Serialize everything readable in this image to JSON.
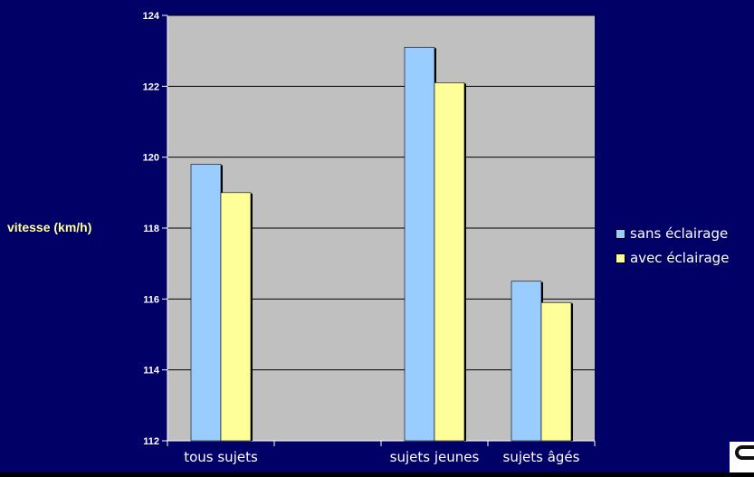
{
  "chart_data": {
    "type": "bar",
    "categories": [
      "tous sujets",
      "",
      "sujets jeunes",
      "sujets âgés"
    ],
    "series": [
      {
        "name": "sans éclairage",
        "values": [
          119.8,
          null,
          123.1,
          116.5
        ]
      },
      {
        "name": "avec éclairage",
        "values": [
          119.0,
          null,
          122.1,
          115.9
        ]
      }
    ],
    "ylabel": "vitesse (km/h)",
    "xlabel": "",
    "ylim": [
      112,
      124
    ],
    "yticks": [
      "112",
      "114",
      "116",
      "118",
      "120",
      "122",
      "124"
    ],
    "grid": true,
    "legend": "right"
  },
  "colors": {
    "background": "#000066",
    "plot_area": "#C0C0C0",
    "series_1": "#99CCFF",
    "series_2": "#FFFF99",
    "ylabel_text": "#FFFF99",
    "tick_text": "#FFFFFF"
  },
  "legend": {
    "items": [
      {
        "label": "sans éclairage"
      },
      {
        "label": "avec éclairage"
      }
    ]
  },
  "logo": {
    "icon": "logo-icon"
  }
}
